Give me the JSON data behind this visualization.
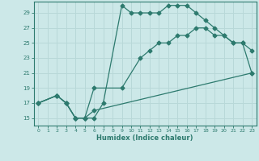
{
  "xlabel": "Humidex (Indice chaleur)",
  "xlim": [
    -0.5,
    23.5
  ],
  "ylim": [
    14,
    30.5
  ],
  "yticks": [
    15,
    17,
    19,
    21,
    23,
    25,
    27,
    29
  ],
  "xticks": [
    0,
    1,
    2,
    3,
    4,
    5,
    6,
    7,
    8,
    9,
    10,
    11,
    12,
    13,
    14,
    15,
    16,
    17,
    18,
    19,
    20,
    21,
    22,
    23
  ],
  "bg_color": "#cce8e8",
  "grid_color": "#b8d8d8",
  "line_color": "#2d7a6e",
  "line1_x": [
    0,
    2,
    3,
    4,
    5,
    6,
    7,
    9,
    10,
    11,
    12,
    13,
    14,
    15,
    16,
    17,
    18,
    19,
    20,
    21,
    22,
    23
  ],
  "line1_y": [
    17,
    18,
    17,
    15,
    15,
    15,
    17,
    30,
    29,
    29,
    29,
    29,
    30,
    30,
    30,
    29,
    28,
    27,
    26,
    25,
    25,
    24
  ],
  "line2_x": [
    0,
    2,
    3,
    4,
    5,
    6,
    9,
    11,
    12,
    13,
    14,
    15,
    16,
    17,
    18,
    19,
    20,
    21,
    22,
    23
  ],
  "line2_y": [
    17,
    18,
    17,
    15,
    15,
    19,
    19,
    23,
    24,
    25,
    25,
    26,
    26,
    27,
    27,
    26,
    26,
    25,
    25,
    21
  ],
  "line3_x": [
    0,
    2,
    3,
    4,
    5,
    6,
    23
  ],
  "line3_y": [
    17,
    18,
    17,
    15,
    15,
    16,
    21
  ]
}
